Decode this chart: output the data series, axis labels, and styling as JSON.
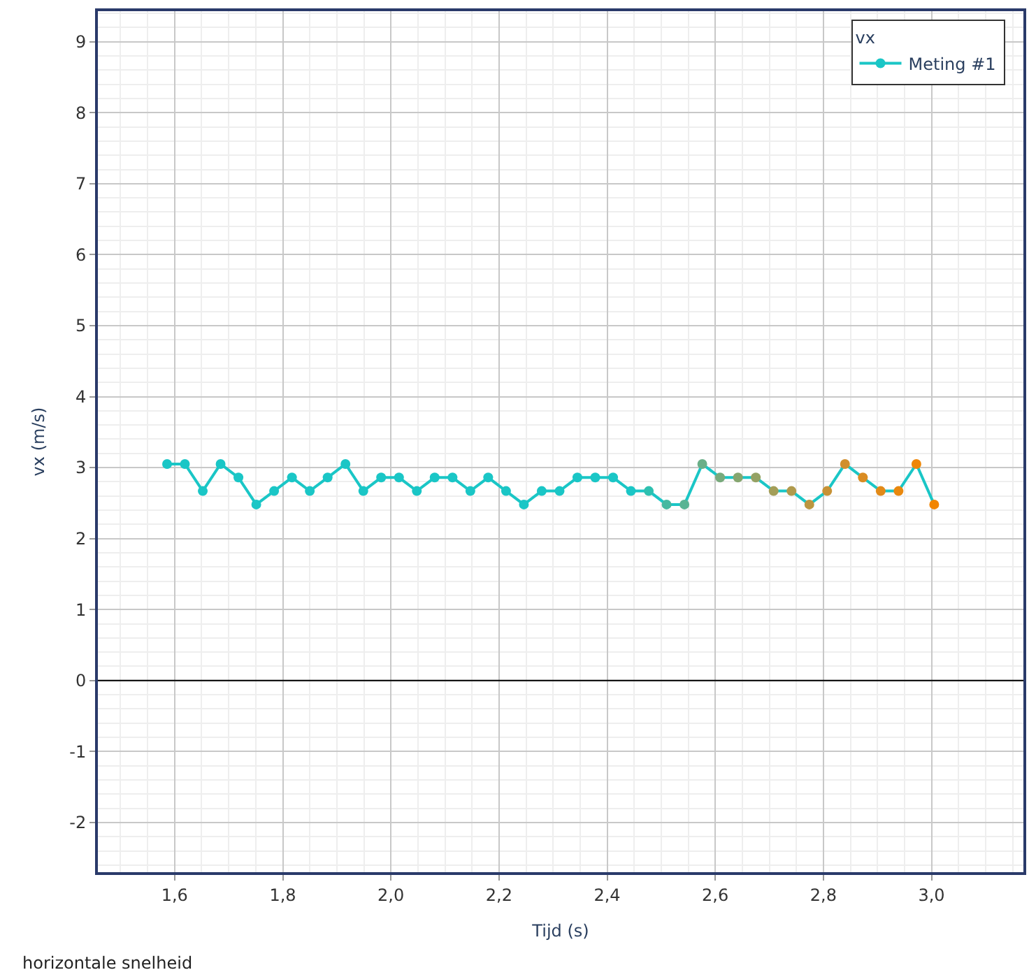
{
  "chart_data": {
    "type": "line",
    "xlabel": "Tijd (s)",
    "ylabel": "vx (m/s)",
    "legend_title": "vx",
    "annotations": [
      "horizontale snelheid"
    ],
    "x": [
      1.586,
      1.619,
      1.652,
      1.685,
      1.718,
      1.751,
      1.784,
      1.817,
      1.85,
      1.883,
      1.916,
      1.949,
      1.982,
      2.015,
      2.048,
      2.081,
      2.114,
      2.147,
      2.18,
      2.213,
      2.246,
      2.279,
      2.312,
      2.345,
      2.378,
      2.411,
      2.444,
      2.477,
      2.51,
      2.543,
      2.576,
      2.609,
      2.642,
      2.675,
      2.708,
      2.741,
      2.774,
      2.807,
      2.84,
      2.873,
      2.906,
      2.939,
      2.972,
      3.005
    ],
    "series": [
      {
        "name": "Meting #1",
        "color": "#1ac6c6",
        "values": [
          3.05,
          3.05,
          2.67,
          3.05,
          2.86,
          2.48,
          2.67,
          2.86,
          2.67,
          2.86,
          3.05,
          2.67,
          2.86,
          2.86,
          2.67,
          2.86,
          2.86,
          2.67,
          2.86,
          2.67,
          2.48,
          2.67,
          2.67,
          2.86,
          2.86,
          2.86,
          2.67,
          2.67,
          2.48,
          2.48,
          3.05,
          2.86,
          2.86,
          2.86,
          2.67,
          2.67,
          2.48,
          2.67,
          3.05,
          2.86,
          2.67,
          2.67,
          3.05,
          2.48
        ],
        "colors": [
          "#1ac6c6",
          "#1ac6c6",
          "#1ac6c6",
          "#1ac6c6",
          "#1ac6c6",
          "#1ac6c6",
          "#1ac6c6",
          "#1ac6c6",
          "#1ac6c6",
          "#1ac6c6",
          "#1ac6c6",
          "#1ac6c6",
          "#1ac6c6",
          "#1ac6c6",
          "#1ac6c6",
          "#1ac6c6",
          "#1ac6c6",
          "#1ac6c6",
          "#1ac6c6",
          "#1ac6c6",
          "#1ac6c6",
          "#1ac6c6",
          "#1ac6c6",
          "#1ac6c6",
          "#1ac6c6",
          "#1ac6c6",
          "#1ac6c6",
          "#2ec0b0",
          "#45b8a0",
          "#5ab494",
          "#6aaf88",
          "#78aa7c",
          "#86a670",
          "#95a264",
          "#a39e58",
          "#b09a4c",
          "#bc9640",
          "#c79236",
          "#d18f2c",
          "#da8c22",
          "#e28a18",
          "#e9880e",
          "#ef8606",
          "#f28500"
        ]
      }
    ],
    "xlim": [
      1.458,
      3.17
    ],
    "ylim": [
      -2.7,
      9.43
    ],
    "xticks": [
      {
        "value": 1.6,
        "label": "1,6"
      },
      {
        "value": 1.8,
        "label": "1,8"
      },
      {
        "value": 2.0,
        "label": "2,0"
      },
      {
        "value": 2.2,
        "label": "2,2"
      },
      {
        "value": 2.4,
        "label": "2,4"
      },
      {
        "value": 2.6,
        "label": "2,6"
      },
      {
        "value": 2.8,
        "label": "2,8"
      },
      {
        "value": 3.0,
        "label": "3,0"
      }
    ],
    "yticks": [
      -2,
      -1,
      0,
      1,
      2,
      3,
      4,
      5,
      6,
      7,
      8,
      9
    ],
    "ref_lines": [
      {
        "axis": "y",
        "value": 0,
        "color": "#000000"
      }
    ],
    "grid": true,
    "legend": "top right",
    "marker": "circle",
    "line_style": "solid"
  }
}
